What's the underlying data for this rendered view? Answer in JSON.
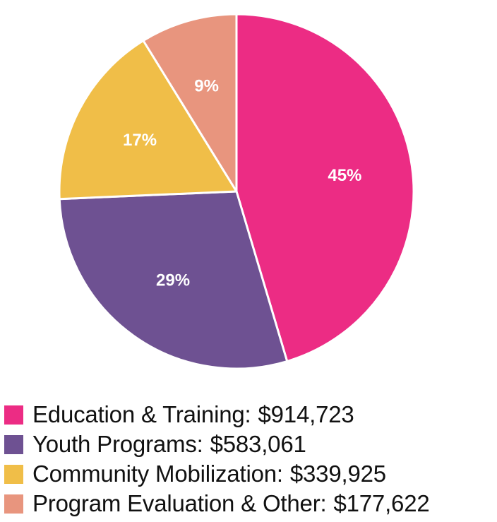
{
  "chart_data": {
    "type": "pie",
    "title": "",
    "start_angle_deg": 0,
    "direction": "clockwise",
    "slices": [
      {
        "name": "Education & Training:",
        "value": 914723,
        "value_label": "$914,723",
        "percent_label": "45%",
        "color": "#EC2C84"
      },
      {
        "name": "Youth Programs:",
        "value": 583061,
        "value_label": "$583,061",
        "percent_label": "29%",
        "color": "#6E5192"
      },
      {
        "name": "Community Mobilization:",
        "value": 339925,
        "value_label": "$339,925",
        "percent_label": "17%",
        "color": "#F0BE48"
      },
      {
        "name": "Program Evaluation & Other:",
        "value": 177622,
        "value_label": "$177,622",
        "percent_label": "9%",
        "color": "#E8957E"
      }
    ],
    "legend": "bottom-left"
  }
}
